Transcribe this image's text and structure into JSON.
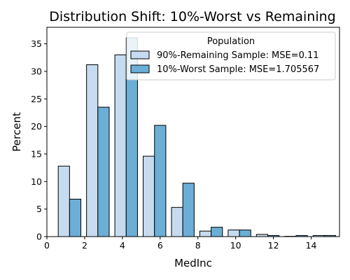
{
  "chart_data": {
    "type": "bar",
    "title": "Distribution Shift: 10%-Worst vs Remaining",
    "xlabel": "MedInc",
    "ylabel": "Percent",
    "xlim": [
      0,
      15.5
    ],
    "ylim": [
      0,
      38
    ],
    "xticks": [
      0,
      2,
      4,
      6,
      8,
      10,
      12,
      14
    ],
    "yticks": [
      0,
      5,
      10,
      15,
      20,
      25,
      30,
      35
    ],
    "grid": false,
    "legend": {
      "title": "Population",
      "placement": "top-right"
    },
    "series": [
      {
        "name": "90%-Remaining Sample: MSE=0.11",
        "color": "#c6dbef",
        "bins": [
          {
            "x0": 0.6,
            "x1": 1.2,
            "value": 12.8
          },
          {
            "x0": 2.1,
            "x1": 2.7,
            "value": 31.2
          },
          {
            "x0": 3.6,
            "x1": 4.2,
            "value": 33.0
          },
          {
            "x0": 5.1,
            "x1": 5.7,
            "value": 14.6
          },
          {
            "x0": 6.6,
            "x1": 7.2,
            "value": 5.3
          },
          {
            "x0": 8.1,
            "x1": 8.7,
            "value": 1.0
          },
          {
            "x0": 9.6,
            "x1": 10.2,
            "value": 1.2
          },
          {
            "x0": 11.1,
            "x1": 11.7,
            "value": 0.4
          },
          {
            "x0": 12.6,
            "x1": 13.2,
            "value": 0.05
          },
          {
            "x0": 14.1,
            "x1": 14.7,
            "value": 0.2
          }
        ]
      },
      {
        "name": "10%-Worst Sample: MSE=1.705567",
        "color": "#6baed6",
        "bins": [
          {
            "x0": 1.2,
            "x1": 1.8,
            "value": 6.8
          },
          {
            "x0": 2.7,
            "x1": 3.3,
            "value": 23.5
          },
          {
            "x0": 4.2,
            "x1": 4.8,
            "value": 36.1
          },
          {
            "x0": 5.7,
            "x1": 6.3,
            "value": 20.2
          },
          {
            "x0": 7.2,
            "x1": 7.8,
            "value": 9.7
          },
          {
            "x0": 8.7,
            "x1": 9.3,
            "value": 1.7
          },
          {
            "x0": 10.2,
            "x1": 10.8,
            "value": 1.2
          },
          {
            "x0": 11.7,
            "x1": 12.3,
            "value": 0.2
          },
          {
            "x0": 13.2,
            "x1": 13.8,
            "value": 0.2
          },
          {
            "x0": 14.7,
            "x1": 15.3,
            "value": 0.2
          }
        ]
      }
    ]
  }
}
